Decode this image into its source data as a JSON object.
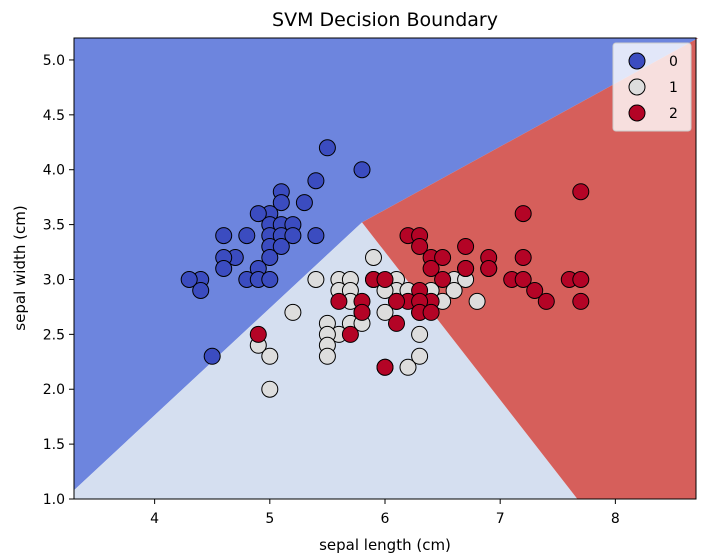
{
  "chart_data": {
    "type": "scatter",
    "title": "SVM Decision Boundary",
    "xlabel": "sepal length (cm)",
    "ylabel": "sepal width (cm)",
    "xlim": [
      3.3,
      8.7
    ],
    "ylim": [
      1.0,
      5.2
    ],
    "xticks": [
      "4",
      "5",
      "6",
      "7",
      "8"
    ],
    "yticks": [
      "1.0",
      "1.5",
      "2.0",
      "2.5",
      "3.0",
      "3.5",
      "4.0",
      "4.5",
      "5.0"
    ],
    "grid": false,
    "legend": "top-right",
    "region_colors": {
      "0": "#6d85de",
      "1": "#d5dff0",
      "2": "#d65f5b"
    },
    "region_boundary": {
      "0": [
        [
          3.3,
          1.08
        ],
        [
          5.8,
          3.52
        ],
        [
          8.72,
          5.2
        ],
        [
          3.3,
          5.2
        ]
      ],
      "1": [
        [
          3.3,
          1.08
        ],
        [
          5.8,
          3.52
        ],
        [
          7.67,
          1.0
        ],
        [
          3.3,
          1.0
        ]
      ],
      "2": [
        [
          5.8,
          3.52
        ],
        [
          8.72,
          5.2
        ],
        [
          8.7,
          5.2
        ],
        [
          8.7,
          1.0
        ],
        [
          7.67,
          1.0
        ]
      ]
    },
    "series": [
      {
        "name": "0",
        "color": "#3b4cc0",
        "points": [
          [
            5.5,
            4.2
          ],
          [
            5.8,
            4.0
          ],
          [
            5.4,
            3.9
          ],
          [
            5.1,
            3.8
          ],
          [
            5.1,
            3.7
          ],
          [
            5.3,
            3.7
          ],
          [
            5.0,
            3.6
          ],
          [
            4.9,
            3.6
          ],
          [
            5.0,
            3.5
          ],
          [
            5.1,
            3.5
          ],
          [
            5.2,
            3.5
          ],
          [
            4.6,
            3.4
          ],
          [
            4.8,
            3.4
          ],
          [
            5.0,
            3.4
          ],
          [
            5.4,
            3.4
          ],
          [
            5.1,
            3.4
          ],
          [
            5.2,
            3.4
          ],
          [
            5.0,
            3.3
          ],
          [
            5.1,
            3.3
          ],
          [
            4.7,
            3.2
          ],
          [
            4.6,
            3.2
          ],
          [
            5.0,
            3.2
          ],
          [
            4.9,
            3.1
          ],
          [
            4.6,
            3.1
          ],
          [
            4.4,
            3.0
          ],
          [
            4.3,
            3.0
          ],
          [
            4.8,
            3.0
          ],
          [
            4.9,
            3.0
          ],
          [
            5.0,
            3.0
          ],
          [
            4.4,
            2.9
          ],
          [
            4.5,
            2.3
          ]
        ]
      },
      {
        "name": "1",
        "color": "#dddddd",
        "points": [
          [
            5.9,
            3.2
          ],
          [
            6.9,
            3.1
          ],
          [
            6.6,
            3.0
          ],
          [
            5.4,
            3.0
          ],
          [
            5.6,
            3.0
          ],
          [
            5.7,
            3.0
          ],
          [
            6.1,
            3.0
          ],
          [
            6.7,
            3.0
          ],
          [
            5.9,
            3.0
          ],
          [
            6.7,
            3.1
          ],
          [
            6.1,
            2.9
          ],
          [
            6.4,
            2.9
          ],
          [
            6.6,
            2.9
          ],
          [
            5.6,
            2.9
          ],
          [
            5.7,
            2.9
          ],
          [
            6.2,
            2.9
          ],
          [
            6.0,
            2.9
          ],
          [
            5.7,
            2.8
          ],
          [
            6.1,
            2.8
          ],
          [
            6.5,
            2.8
          ],
          [
            6.8,
            2.8
          ],
          [
            5.8,
            2.7
          ],
          [
            6.3,
            2.7
          ],
          [
            6.0,
            2.7
          ],
          [
            5.2,
            2.7
          ],
          [
            5.5,
            2.6
          ],
          [
            5.7,
            2.6
          ],
          [
            5.8,
            2.6
          ],
          [
            5.6,
            2.5
          ],
          [
            5.5,
            2.5
          ],
          [
            6.3,
            2.5
          ],
          [
            5.5,
            2.4
          ],
          [
            4.9,
            2.4
          ],
          [
            6.2,
            2.2
          ],
          [
            6.0,
            2.2
          ],
          [
            5.0,
            2.3
          ],
          [
            6.3,
            2.3
          ],
          [
            5.5,
            2.3
          ],
          [
            5.0,
            2.0
          ]
        ]
      },
      {
        "name": "2",
        "color": "#b40426",
        "points": [
          [
            7.7,
            3.8
          ],
          [
            7.2,
            3.6
          ],
          [
            6.2,
            3.4
          ],
          [
            6.3,
            3.4
          ],
          [
            6.7,
            3.3
          ],
          [
            6.3,
            3.3
          ],
          [
            6.4,
            3.2
          ],
          [
            6.9,
            3.2
          ],
          [
            7.2,
            3.2
          ],
          [
            6.5,
            3.2
          ],
          [
            6.4,
            3.1
          ],
          [
            6.7,
            3.1
          ],
          [
            6.9,
            3.1
          ],
          [
            5.9,
            3.0
          ],
          [
            6.0,
            3.0
          ],
          [
            6.5,
            3.0
          ],
          [
            7.1,
            3.0
          ],
          [
            7.2,
            3.0
          ],
          [
            7.6,
            3.0
          ],
          [
            7.7,
            3.0
          ],
          [
            6.3,
            2.9
          ],
          [
            7.3,
            2.9
          ],
          [
            6.4,
            2.8
          ],
          [
            6.2,
            2.8
          ],
          [
            6.3,
            2.8
          ],
          [
            5.6,
            2.8
          ],
          [
            5.8,
            2.8
          ],
          [
            6.1,
            2.8
          ],
          [
            7.4,
            2.8
          ],
          [
            7.7,
            2.8
          ],
          [
            6.3,
            2.7
          ],
          [
            5.8,
            2.7
          ],
          [
            6.4,
            2.7
          ],
          [
            6.1,
            2.6
          ],
          [
            5.7,
            2.5
          ],
          [
            4.9,
            2.5
          ],
          [
            6.0,
            2.2
          ]
        ]
      }
    ]
  }
}
